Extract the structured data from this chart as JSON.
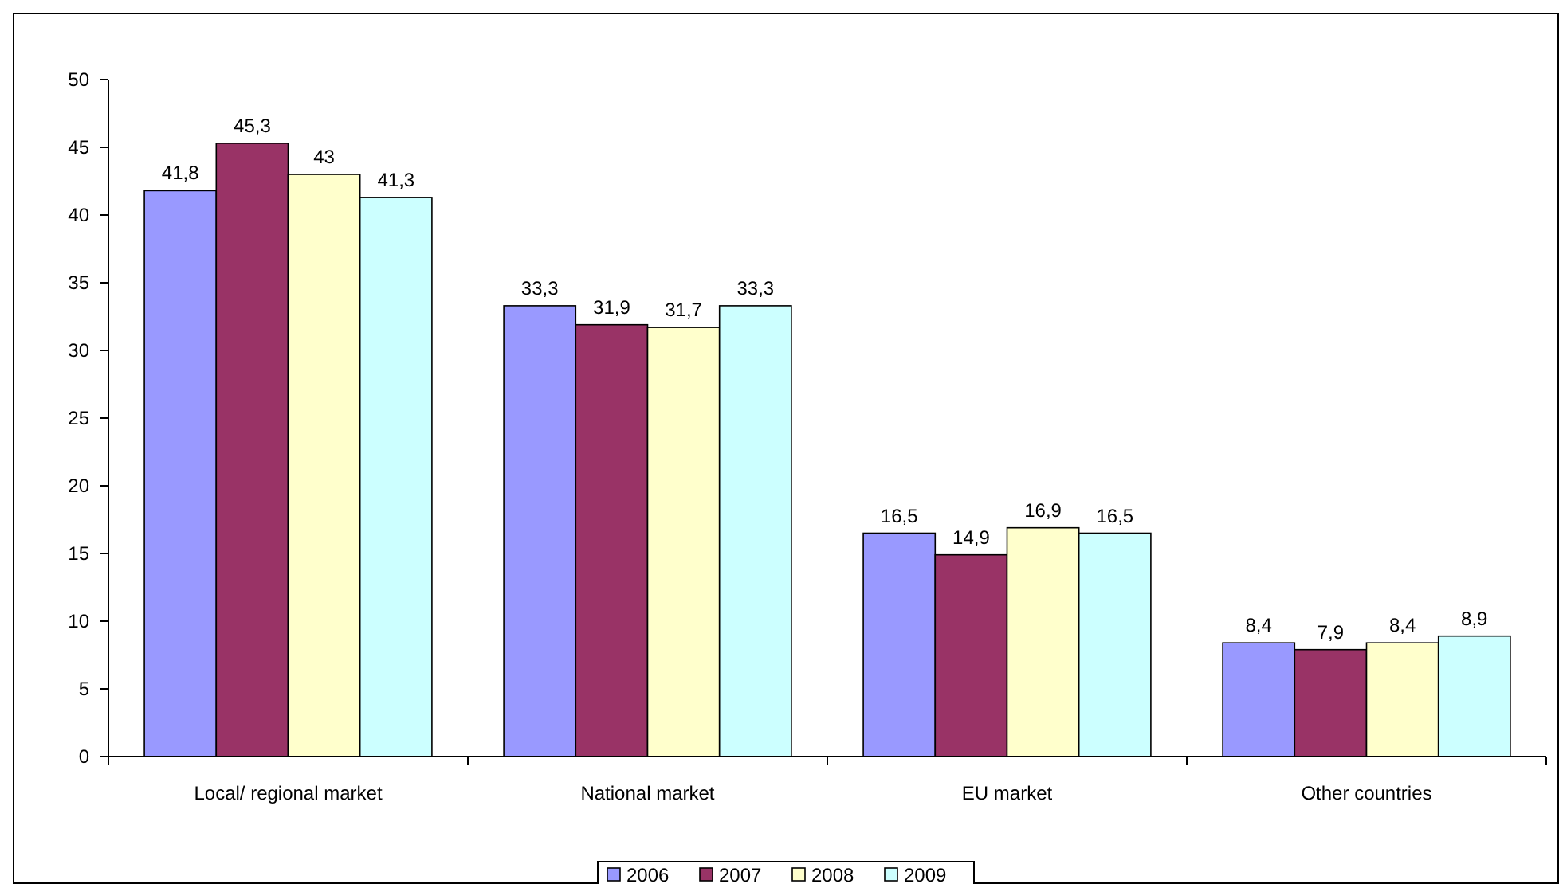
{
  "chart_data": {
    "type": "bar",
    "categories": [
      "Local/ regional market",
      "National market",
      "EU market",
      "Other countries"
    ],
    "series": [
      {
        "name": "2006",
        "color": "#9999ff",
        "values": [
          41.8,
          33.3,
          16.5,
          8.4
        ],
        "value_labels": [
          "41,8",
          "33,3",
          "16,5",
          "8,4"
        ]
      },
      {
        "name": "2007",
        "color": "#993366",
        "values": [
          45.3,
          31.9,
          14.9,
          7.9
        ],
        "value_labels": [
          "45,3",
          "31,9",
          "14,9",
          "7,9"
        ]
      },
      {
        "name": "2008",
        "color": "#ffffcc",
        "values": [
          43,
          31.7,
          16.9,
          8.4
        ],
        "value_labels": [
          "43",
          "31,7",
          "16,9",
          "8,4"
        ]
      },
      {
        "name": "2009",
        "color": "#ccffff",
        "values": [
          41.3,
          33.3,
          16.5,
          8.9
        ],
        "value_labels": [
          "41,3",
          "33,3",
          "16,5",
          "8,9"
        ]
      }
    ],
    "ylim": [
      0,
      50
    ],
    "yticks": [
      0,
      5,
      10,
      15,
      20,
      25,
      30,
      35,
      40,
      45,
      50
    ],
    "grid": false,
    "legend": "bottom"
  }
}
